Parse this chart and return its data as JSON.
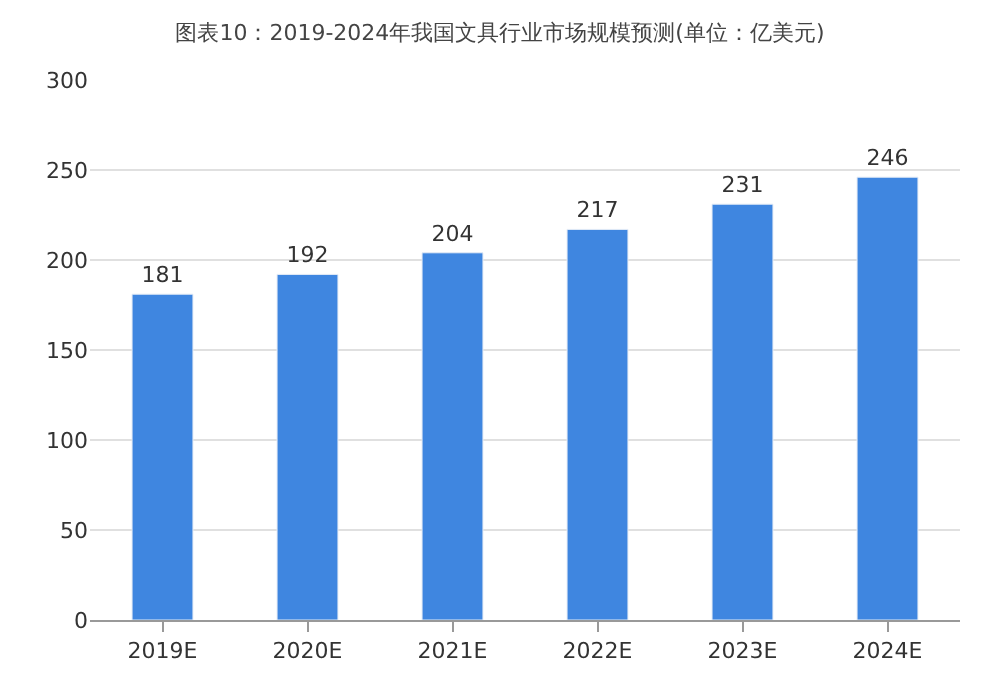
{
  "chart_data": {
    "type": "bar",
    "title": "图表10：2019-2024年我国文具行业市场规模预测(单位：亿美元)",
    "categories": [
      "2019E",
      "2020E",
      "2021E",
      "2022E",
      "2023E",
      "2024E"
    ],
    "values": [
      181,
      192,
      204,
      217,
      231,
      246
    ],
    "color": "#3f86e0",
    "ylim": [
      0,
      300
    ],
    "yticks": [
      0,
      50,
      100,
      150,
      200,
      250,
      300
    ],
    "grid": "y",
    "data_labels": true,
    "legend": false
  }
}
